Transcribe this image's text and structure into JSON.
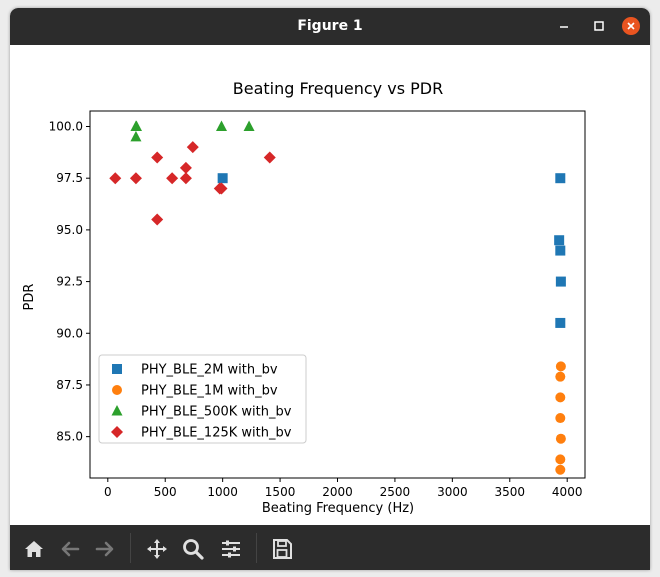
{
  "window": {
    "title": "Figure 1"
  },
  "toolbar": {
    "items": [
      "home-icon",
      "back-icon",
      "forward-icon",
      "pan-icon",
      "zoom-icon",
      "configure-subplots-icon",
      "save-icon"
    ]
  },
  "chart_data": {
    "type": "scatter",
    "title": "Beating Frequency vs PDR",
    "xlabel": "Beating Frequency (Hz)",
    "ylabel": "PDR",
    "xlim": [
      -155,
      4155
    ],
    "ylim": [
      83.0,
      100.75
    ],
    "xticks": [
      0,
      500,
      1000,
      1500,
      2000,
      2500,
      3000,
      3500,
      4000
    ],
    "yticks": [
      85.0,
      87.5,
      90.0,
      92.5,
      95.0,
      97.5,
      100.0
    ],
    "ytick_labels": [
      "85.0",
      "87.5",
      "90.0",
      "92.5",
      "95.0",
      "97.5",
      "100.0"
    ],
    "grid": false,
    "legend": "lower-left",
    "series": [
      {
        "name": "PHY_BLE_2M with_bv",
        "marker": "square",
        "color": "#1f77b4",
        "points": [
          [
            1000,
            97.5
          ],
          [
            3940,
            97.5
          ],
          [
            3930,
            94.5
          ],
          [
            3940,
            94.0
          ],
          [
            3945,
            92.5
          ],
          [
            3940,
            90.5
          ]
        ]
      },
      {
        "name": "PHY_BLE_1M with_bv",
        "marker": "circle",
        "color": "#ff7f0e",
        "points": [
          [
            3945,
            88.4
          ],
          [
            3940,
            87.9
          ],
          [
            3940,
            86.9
          ],
          [
            3940,
            85.9
          ],
          [
            3945,
            84.9
          ],
          [
            3940,
            83.9
          ],
          [
            3940,
            83.4
          ]
        ]
      },
      {
        "name": "PHY_BLE_500K with_bv",
        "marker": "triangle",
        "color": "#2ca02c",
        "points": [
          [
            245,
            100.0
          ],
          [
            250,
            100.0
          ],
          [
            245,
            99.5
          ],
          [
            990,
            100.0
          ],
          [
            1230,
            100.0
          ]
        ]
      },
      {
        "name": "PHY_BLE_125K with_bv",
        "marker": "diamond",
        "color": "#d62728",
        "points": [
          [
            65,
            97.5
          ],
          [
            245,
            97.5
          ],
          [
            430,
            95.5
          ],
          [
            430,
            98.5
          ],
          [
            560,
            97.5
          ],
          [
            680,
            97.5
          ],
          [
            680,
            98.0
          ],
          [
            740,
            99.0
          ],
          [
            975,
            97.0
          ],
          [
            990,
            97.0
          ],
          [
            1410,
            98.5
          ]
        ]
      }
    ]
  }
}
